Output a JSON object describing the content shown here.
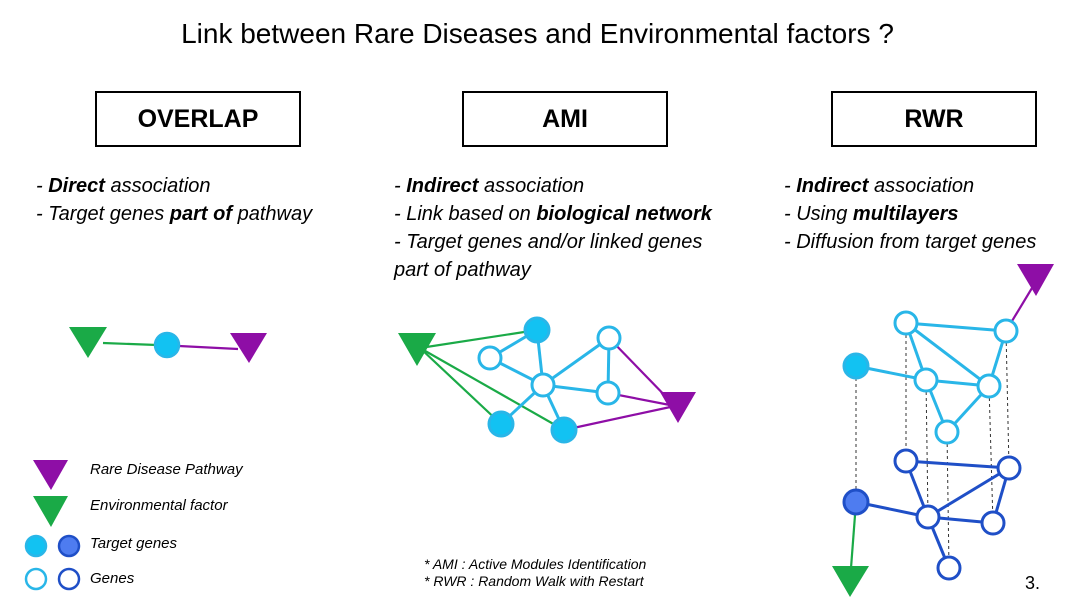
{
  "title": "Link between Rare Diseases and Environmental factors ?",
  "methods": [
    {
      "label": "OVERLAP",
      "bullets": [
        [
          {
            "t": "- ",
            "b": false
          },
          {
            "t": "Direct",
            "b": true
          },
          {
            "t": " association",
            "b": false
          }
        ],
        [
          {
            "t": "- Target genes ",
            "b": false
          },
          {
            "t": "part of",
            "b": true
          },
          {
            "t": " pathway",
            "b": false
          }
        ]
      ]
    },
    {
      "label": "AMI",
      "bullets": [
        [
          {
            "t": "- ",
            "b": false
          },
          {
            "t": "Indirect",
            "b": true
          },
          {
            "t": " association",
            "b": false
          }
        ],
        [
          {
            "t": "- Link based on ",
            "b": false
          },
          {
            "t": "biological network",
            "b": true
          }
        ],
        [
          {
            "t": "- Target genes and/or linked genes",
            "b": false
          }
        ],
        [
          {
            "t": "part of pathway",
            "b": false
          }
        ]
      ]
    },
    {
      "label": "RWR",
      "bullets": [
        [
          {
            "t": "- ",
            "b": false
          },
          {
            "t": "Indirect",
            "b": true
          },
          {
            "t": " association",
            "b": false
          }
        ],
        [
          {
            "t": "- Using ",
            "b": false
          },
          {
            "t": "multilayers",
            "b": true
          }
        ],
        [
          {
            "t": "- Diffusion from target genes",
            "b": false
          }
        ]
      ]
    }
  ],
  "legend": {
    "rare_disease_pathway": "Rare Disease Pathway",
    "environmental_factor": "Environmental factor",
    "target_genes": "Target genes",
    "genes": "Genes"
  },
  "footnotes": {
    "ami": "* AMI : Active Modules Identification",
    "rwr": "* RWR : Random Walk with Restart"
  },
  "page_number": "3.",
  "colors": {
    "purple": "#8e0ea6",
    "green": "#1aaa47",
    "cyan": "#29b6e8",
    "cyan_fill": "#12c2f2",
    "blue": "#1f4fc7",
    "blue_fill": "#4e7cf0"
  }
}
